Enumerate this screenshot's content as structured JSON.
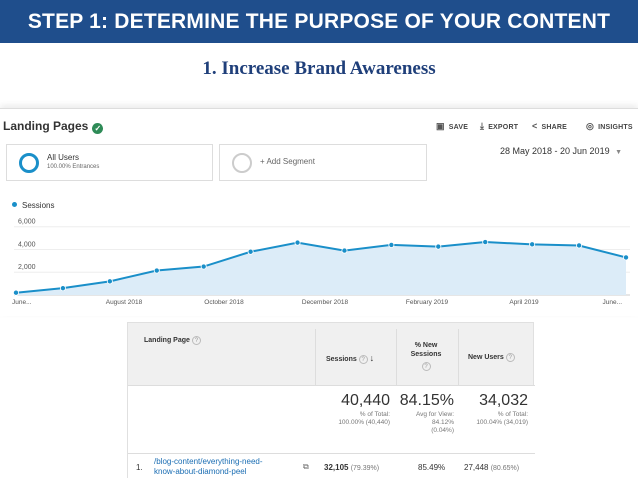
{
  "banner": {
    "title": "STEP 1: DETERMINE THE PURPOSE OF YOUR CONTENT"
  },
  "subtitle": "1.  Increase Brand Awareness",
  "report": {
    "title": "Landing Pages",
    "toolbar": {
      "save": "SAVE",
      "export": "EXPORT",
      "share": "SHARE",
      "insights": "INSIGHTS"
    },
    "segments": [
      {
        "label": "All Users",
        "sub": "100.00% Entrances"
      },
      {
        "label": "+ Add Segment",
        "sub": ""
      }
    ],
    "date_range": "28 May 2018 - 20 Jun 2019",
    "legend": "Sessions"
  },
  "chart_data": {
    "type": "area",
    "series": [
      {
        "name": "Sessions",
        "values": [
          200,
          600,
          1200,
          2150,
          2500,
          3800,
          4600,
          3900,
          4400,
          4250,
          4650,
          4450,
          4350,
          3300
        ],
        "color": "#1a8fc9"
      }
    ],
    "x_tick_labels": [
      "June...",
      "August 2018",
      "October 2018",
      "December 2018",
      "February 2019",
      "April 2019",
      "June..."
    ],
    "y_ticks": [
      "6,000",
      "4,000",
      "2,000"
    ],
    "ylim": [
      0,
      6500
    ],
    "grid": true
  },
  "table": {
    "headers": {
      "landing_page": "Landing Page",
      "sessions": "Sessions",
      "new_sessions": "% New Sessions",
      "new_users": "New Users"
    },
    "totals": {
      "sessions": "40,440",
      "sessions_sub1": "% of Total:",
      "sessions_sub2": "100.00% (40,440)",
      "new_sessions": "84.15%",
      "new_sessions_sub1": "Avg for View:",
      "new_sessions_sub2": "84.12%",
      "new_sessions_sub3": "(0.04%)",
      "new_users": "34,032",
      "new_users_sub1": "% of Total:",
      "new_users_sub2": "100.04% (34,019)"
    },
    "rows": [
      {
        "num": "1.",
        "page": "/blog-content/everything-need-know-about-diamond-peel",
        "sessions": "32,105",
        "sessions_pct": "(79.39%)",
        "new_sessions": "85.49%",
        "new_users": "27,448",
        "new_users_pct": "(80.65%)"
      }
    ]
  }
}
